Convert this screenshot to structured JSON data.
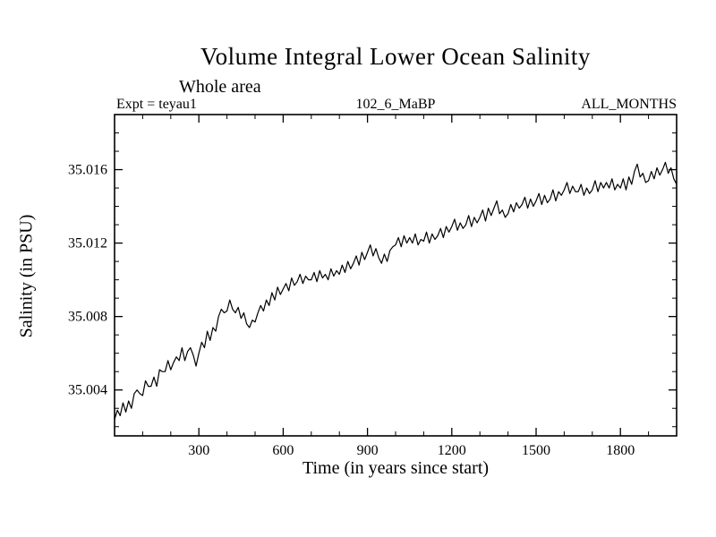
{
  "page": {
    "background": "#ffffff",
    "text_color": "#000000"
  },
  "chart_data": {
    "type": "line",
    "title": "Volume Integral Lower Ocean Salinity",
    "subtitle": "Whole area",
    "annotations": {
      "left": "Expt = teyau1",
      "center": "102_6_MaBP",
      "right": "ALL_MONTHS"
    },
    "xlabel": "Time (in years since start)",
    "ylabel": "Salinity (in PSU)",
    "xlim": [
      0,
      2000
    ],
    "ylim": [
      35.0015,
      35.019
    ],
    "grid": false,
    "legend": "none",
    "line_color": "#000000",
    "x_ticks": {
      "major": [
        300,
        600,
        900,
        1200,
        1500,
        1800
      ],
      "labels": [
        "300",
        "600",
        "900",
        "1200",
        "1500",
        "1800"
      ],
      "minor_step": 100
    },
    "y_ticks": {
      "major": [
        35.004,
        35.008,
        35.012,
        35.016
      ],
      "labels": [
        "35.004",
        "35.008",
        "35.012",
        "35.016"
      ],
      "minor_step": 0.001
    },
    "series": [
      {
        "name": "lower-ocean-salinity",
        "x_start": 0,
        "x_step": 10,
        "values": [
          35.0024,
          35.0029,
          35.0026,
          35.0033,
          35.0028,
          35.0034,
          35.003,
          35.0038,
          35.004,
          35.0038,
          35.0037,
          35.0045,
          35.0042,
          35.0042,
          35.0047,
          35.0042,
          35.0051,
          35.005,
          35.005,
          35.0056,
          35.0051,
          35.0055,
          35.0058,
          35.0056,
          35.0063,
          35.0056,
          35.0061,
          35.0063,
          35.0059,
          35.0053,
          35.006,
          35.0066,
          35.0063,
          35.0072,
          35.0067,
          35.0074,
          35.0072,
          35.008,
          35.0084,
          35.0082,
          35.0083,
          35.0089,
          35.0084,
          35.0082,
          35.0085,
          35.0079,
          35.0082,
          35.0076,
          35.0074,
          35.0078,
          35.0077,
          35.0082,
          35.0086,
          35.0083,
          35.0089,
          35.0086,
          35.0093,
          35.0089,
          35.0096,
          35.0092,
          35.0095,
          35.0098,
          35.0094,
          35.0101,
          35.0097,
          35.0099,
          35.0103,
          35.0098,
          35.0102,
          35.01,
          35.01,
          35.0104,
          35.0099,
          35.0105,
          35.0101,
          35.0103,
          35.01,
          35.0106,
          35.0102,
          35.0105,
          35.0103,
          35.0108,
          35.0104,
          35.011,
          35.0106,
          35.0109,
          35.0113,
          35.0108,
          35.0115,
          35.0111,
          35.0115,
          35.0119,
          35.0113,
          35.0117,
          35.0112,
          35.0109,
          35.0114,
          35.011,
          35.0116,
          35.0118,
          35.0119,
          35.0123,
          35.0118,
          35.0124,
          35.012,
          35.0123,
          35.012,
          35.0125,
          35.0119,
          35.0122,
          35.0121,
          35.0126,
          35.012,
          35.0125,
          35.0122,
          35.0124,
          35.0128,
          35.0123,
          35.0129,
          35.0126,
          35.0129,
          35.0133,
          35.0127,
          35.0131,
          35.0128,
          35.013,
          35.0135,
          35.0129,
          35.0134,
          35.0131,
          35.0134,
          35.0138,
          35.0132,
          35.0139,
          35.0135,
          35.0139,
          35.0143,
          35.0136,
          35.0138,
          35.0134,
          35.0136,
          35.0141,
          35.0137,
          35.0142,
          35.0139,
          35.0141,
          35.0145,
          35.0139,
          35.0144,
          35.014,
          35.0143,
          35.0147,
          35.0141,
          35.0146,
          35.0142,
          35.0144,
          35.0149,
          35.0143,
          35.0148,
          35.0146,
          35.0149,
          35.0153,
          35.0147,
          35.0151,
          35.0148,
          35.0148,
          35.0152,
          35.0146,
          35.015,
          35.0147,
          35.0149,
          35.0154,
          35.0148,
          35.0153,
          35.015,
          35.0153,
          35.015,
          35.0155,
          35.0149,
          35.0152,
          35.015,
          35.0155,
          35.0149,
          35.0156,
          35.0152,
          35.0159,
          35.0163,
          35.0156,
          35.0158,
          35.0153,
          35.0154,
          35.0159,
          35.0155,
          35.0161,
          35.0157,
          35.016,
          35.0164,
          35.0158,
          35.0161,
          35.0155,
          35.0152
        ]
      }
    ]
  }
}
